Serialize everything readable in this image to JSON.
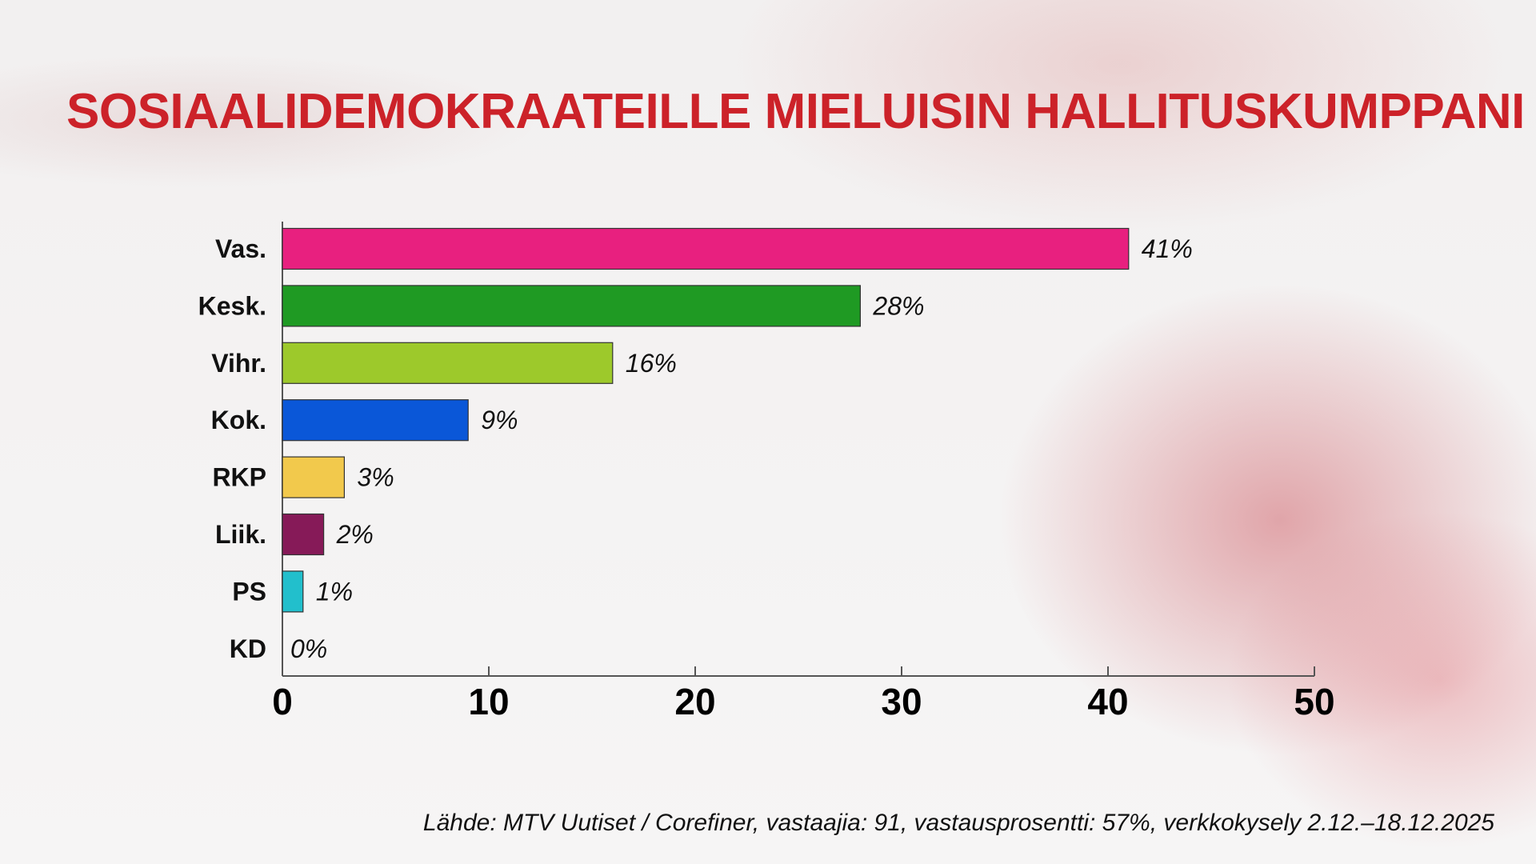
{
  "title": "SOSIAALIDEMOKRAATEILLE MIELUISIN HALLITUSKUMPPANI",
  "source": "Lähde: MTV Uutiset / Corefiner, vastaajia: 91, vastausprosentti: 57%, verkkokysely 2.12.–18.12.2025",
  "chart_data": {
    "type": "bar",
    "orientation": "horizontal",
    "categories": [
      "Vas.",
      "Kesk.",
      "Vihr.",
      "Kok.",
      "RKP",
      "Liik.",
      "PS",
      "KD"
    ],
    "values": [
      41,
      28,
      16,
      9,
      3,
      2,
      1,
      0
    ],
    "data_labels": [
      "41%",
      "28%",
      "16%",
      "9%",
      "3%",
      "2%",
      "1%",
      "0%"
    ],
    "colors": [
      "#e8207f",
      "#1f9a23",
      "#9dc92b",
      "#0a57d8",
      "#f2c94c",
      "#861a58",
      "#22bfcc",
      "#888888"
    ],
    "xlim": [
      0,
      50
    ],
    "xticks": [
      "0",
      "10",
      "20",
      "30",
      "40",
      "50"
    ],
    "grid": false,
    "title": "SOSIAALIDEMOKRAATEILLE MIELUISIN HALLITUSKUMPPANI",
    "xlabel": "",
    "ylabel": ""
  }
}
